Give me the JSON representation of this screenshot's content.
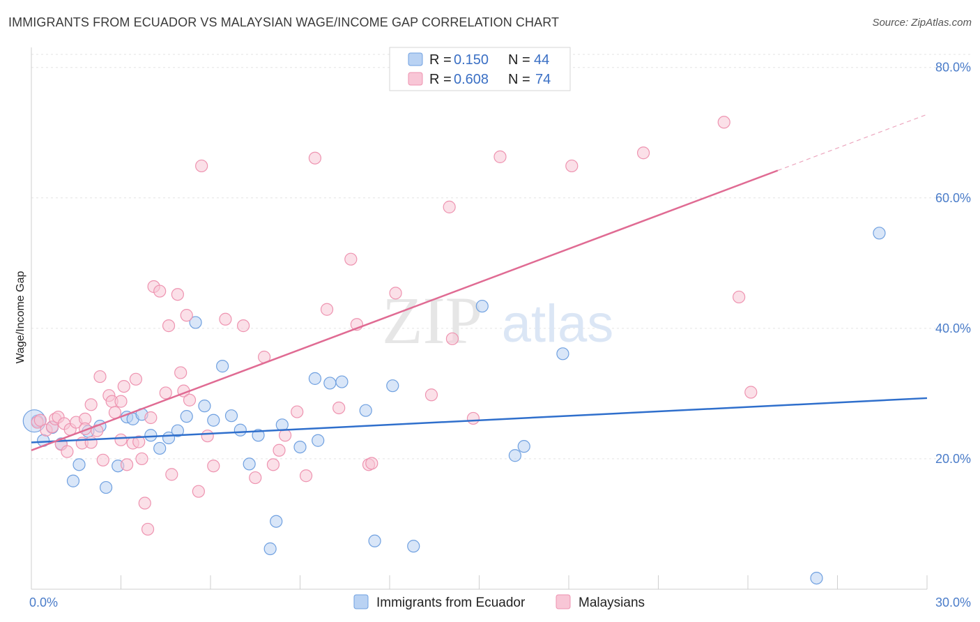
{
  "title": "IMMIGRANTS FROM ECUADOR VS MALAYSIAN WAGE/INCOME GAP CORRELATION CHART",
  "source": "Source: ZipAtlas.com",
  "watermark": {
    "zip": "ZIP",
    "atlas": "atlas"
  },
  "chart_data": {
    "type": "scatter",
    "ylabel": "Wage/Income Gap",
    "xlim": [
      0,
      30
    ],
    "ylim": [
      0,
      82
    ],
    "x_tick_labels": [
      {
        "value": 0,
        "label": "0.0%"
      },
      {
        "value": 30,
        "label": "30.0%"
      }
    ],
    "y_tick_labels": [
      {
        "value": 20,
        "label": "20.0%"
      },
      {
        "value": 40,
        "label": "40.0%"
      },
      {
        "value": 60,
        "label": "60.0%"
      },
      {
        "value": 80,
        "label": "80.0%"
      }
    ],
    "y_gridlines": [
      20,
      40,
      60,
      80
    ],
    "legend_top": [
      {
        "r_label": "R =",
        "r_value": "0.150",
        "n_label": "N =",
        "n_value": "44"
      },
      {
        "r_label": "R =",
        "r_value": "0.608",
        "n_label": "N =",
        "n_value": "74"
      }
    ],
    "series": [
      {
        "name": "Immigrants from Ecuador",
        "color": "#6fa0e0",
        "fill": "#b9d2f3",
        "trend": {
          "x0": 0,
          "y0": 22.5,
          "x1": 30,
          "y1": 29.3,
          "line_color": "#2f6fcc"
        },
        "points": [
          [
            0.2,
            25.8
          ],
          [
            0.4,
            22.8
          ],
          [
            0.7,
            24.8
          ],
          [
            1.0,
            22.3
          ],
          [
            1.4,
            16.6
          ],
          [
            1.6,
            19.1
          ],
          [
            1.9,
            24.2
          ],
          [
            2.3,
            25.0
          ],
          [
            2.5,
            15.6
          ],
          [
            2.9,
            18.9
          ],
          [
            3.2,
            26.4
          ],
          [
            3.4,
            26.1
          ],
          [
            3.7,
            26.8
          ],
          [
            4.0,
            23.6
          ],
          [
            4.3,
            21.6
          ],
          [
            4.6,
            23.2
          ],
          [
            4.9,
            24.3
          ],
          [
            5.2,
            26.5
          ],
          [
            5.5,
            40.9
          ],
          [
            5.8,
            28.1
          ],
          [
            6.1,
            25.9
          ],
          [
            6.4,
            34.2
          ],
          [
            6.7,
            26.6
          ],
          [
            7.0,
            24.4
          ],
          [
            7.3,
            19.2
          ],
          [
            7.6,
            23.6
          ],
          [
            8.0,
            6.2
          ],
          [
            8.2,
            10.4
          ],
          [
            8.4,
            25.2
          ],
          [
            9.0,
            21.8
          ],
          [
            9.5,
            32.3
          ],
          [
            9.6,
            22.8
          ],
          [
            10.0,
            31.6
          ],
          [
            10.4,
            31.8
          ],
          [
            11.2,
            27.4
          ],
          [
            11.5,
            7.4
          ],
          [
            12.1,
            31.2
          ],
          [
            12.8,
            6.6
          ],
          [
            15.1,
            43.4
          ],
          [
            16.2,
            20.5
          ],
          [
            16.5,
            21.9
          ],
          [
            17.8,
            36.1
          ],
          [
            26.3,
            1.7
          ],
          [
            28.4,
            54.6
          ]
        ]
      },
      {
        "name": "Malaysians",
        "color": "#ee93b0",
        "fill": "#f8c6d6",
        "trend": {
          "x0": 0,
          "y0": 21.3,
          "x1": 25.0,
          "y1": 64.2,
          "dash_x1": 30,
          "dash_y1": 72.8,
          "line_color": "#e06b93"
        },
        "points": [
          [
            0.2,
            25.6
          ],
          [
            0.3,
            25.9
          ],
          [
            0.5,
            24.4
          ],
          [
            0.7,
            24.9
          ],
          [
            0.8,
            26.1
          ],
          [
            0.9,
            26.4
          ],
          [
            1.0,
            22.2
          ],
          [
            1.1,
            25.4
          ],
          [
            1.2,
            21.1
          ],
          [
            1.3,
            24.5
          ],
          [
            1.5,
            25.6
          ],
          [
            1.7,
            22.4
          ],
          [
            1.8,
            26.1
          ],
          [
            1.8,
            24.6
          ],
          [
            2.0,
            22.5
          ],
          [
            2.0,
            28.3
          ],
          [
            2.2,
            24.3
          ],
          [
            2.3,
            32.6
          ],
          [
            2.4,
            19.8
          ],
          [
            2.6,
            29.7
          ],
          [
            2.7,
            28.8
          ],
          [
            2.8,
            27.1
          ],
          [
            3.0,
            28.8
          ],
          [
            3.0,
            22.9
          ],
          [
            3.1,
            31.1
          ],
          [
            3.2,
            19.1
          ],
          [
            3.4,
            22.4
          ],
          [
            3.5,
            32.2
          ],
          [
            3.6,
            22.6
          ],
          [
            3.7,
            20.0
          ],
          [
            3.8,
            13.2
          ],
          [
            3.9,
            9.2
          ],
          [
            4.0,
            26.3
          ],
          [
            4.1,
            46.4
          ],
          [
            4.3,
            45.7
          ],
          [
            4.5,
            30.1
          ],
          [
            4.7,
            17.6
          ],
          [
            4.6,
            40.4
          ],
          [
            4.9,
            45.2
          ],
          [
            5.0,
            33.2
          ],
          [
            5.1,
            30.4
          ],
          [
            5.2,
            42.0
          ],
          [
            5.3,
            29.0
          ],
          [
            5.6,
            15.0
          ],
          [
            5.7,
            64.9
          ],
          [
            5.9,
            23.5
          ],
          [
            6.1,
            18.9
          ],
          [
            6.5,
            41.4
          ],
          [
            7.1,
            40.4
          ],
          [
            7.5,
            17.1
          ],
          [
            7.8,
            35.6
          ],
          [
            8.1,
            19.1
          ],
          [
            8.3,
            21.3
          ],
          [
            8.5,
            23.6
          ],
          [
            8.9,
            27.2
          ],
          [
            9.2,
            17.4
          ],
          [
            9.5,
            66.1
          ],
          [
            9.9,
            42.9
          ],
          [
            10.3,
            27.8
          ],
          [
            10.7,
            50.6
          ],
          [
            10.9,
            40.6
          ],
          [
            11.3,
            19.1
          ],
          [
            11.4,
            19.3
          ],
          [
            12.2,
            45.4
          ],
          [
            13.4,
            29.8
          ],
          [
            14.0,
            58.6
          ],
          [
            14.1,
            38.4
          ],
          [
            14.8,
            26.2
          ],
          [
            15.7,
            66.3
          ],
          [
            18.1,
            64.9
          ],
          [
            20.5,
            66.9
          ],
          [
            23.2,
            71.6
          ],
          [
            23.7,
            44.8
          ],
          [
            24.1,
            30.2
          ]
        ]
      }
    ]
  }
}
